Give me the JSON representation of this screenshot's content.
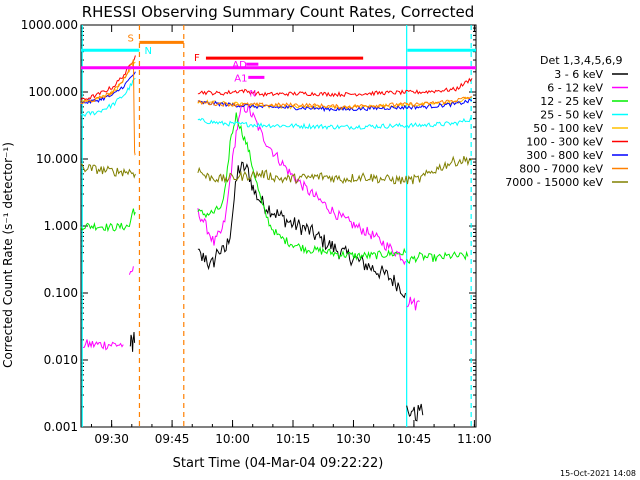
{
  "chart_data": {
    "type": "line",
    "title": "RHESSI Observing Summary Count Rates, Corrected",
    "ylabel": "Corrected Count Rate (s⁻¹ detector⁻¹)",
    "xlabel": "Start Time (04-Mar-04 09:22:22)",
    "x_unit": "minutes after 09:22:22",
    "y_scale": "log",
    "xlim": [
      0,
      98
    ],
    "ylim": [
      0.001,
      1000
    ],
    "x_ticks": [
      {
        "label": "09:30",
        "x": 7.6
      },
      {
        "label": "09:45",
        "x": 22.6
      },
      {
        "label": "10:00",
        "x": 37.6
      },
      {
        "label": "10:15",
        "x": 52.6
      },
      {
        "label": "10:30",
        "x": 67.6
      },
      {
        "label": "10:45",
        "x": 82.6
      },
      {
        "label": "11:00",
        "x": 97.6
      }
    ],
    "y_ticks": [
      {
        "label": "1000.000",
        "v": 1000
      },
      {
        "label": "100.000",
        "v": 100
      },
      {
        "label": "10.000",
        "v": 10
      },
      {
        "label": "1.000",
        "v": 1
      },
      {
        "label": "0.100",
        "v": 0.1
      },
      {
        "label": "0.010",
        "v": 0.01
      },
      {
        "label": "0.001",
        "v": 0.001
      }
    ],
    "legend_title": "Det 1,3,4,5,6,9",
    "legend_position": "right",
    "series": [
      {
        "name": "3 - 6 keV",
        "color": "#000000",
        "noise": 0.12,
        "segments": [
          [
            [
              12.1,
              0.015
            ],
            [
              12.4,
              0.022
            ],
            [
              12.8,
              0.012
            ],
            [
              13.0,
              0.025
            ],
            [
              13.3,
              0.018
            ]
          ],
          [
            [
              29.0,
              0.4
            ],
            [
              30.0,
              0.33
            ],
            [
              31.0,
              0.35
            ],
            [
              32.0,
              0.24
            ],
            [
              33.0,
              0.3
            ],
            [
              34.0,
              0.45
            ],
            [
              35.0,
              0.4
            ],
            [
              36.0,
              0.45
            ],
            [
              37.0,
              0.8
            ],
            [
              38.0,
              2.5
            ],
            [
              39.0,
              7.0
            ],
            [
              40.5,
              7.5
            ],
            [
              41.5,
              6.5
            ],
            [
              43.0,
              3.2
            ],
            [
              45.0,
              2.2
            ],
            [
              48.0,
              1.6
            ],
            [
              52.0,
              1.1
            ],
            [
              56.0,
              0.9
            ],
            [
              60.0,
              0.6
            ],
            [
              64.0,
              0.42
            ],
            [
              68.0,
              0.32
            ],
            [
              72.0,
              0.24
            ],
            [
              76.0,
              0.18
            ],
            [
              79.0,
              0.13
            ],
            [
              80.5,
              0.1
            ]
          ],
          [
            [
              80.8,
              0.0018
            ],
            [
              81.5,
              0.0013
            ],
            [
              82.0,
              0.002
            ],
            [
              83.0,
              0.0014
            ],
            [
              84.0,
              0.0019
            ],
            [
              84.8,
              0.0015
            ]
          ]
        ]
      },
      {
        "name": "6 - 12 keV",
        "color": "#ff00ff",
        "noise": 0.08,
        "segments": [
          [
            [
              0.5,
              0.017
            ],
            [
              10.5,
              0.017
            ]
          ],
          [
            [
              12.0,
              0.16
            ],
            [
              12.6,
              0.2
            ],
            [
              13.0,
              0.25
            ]
          ],
          [
            [
              29.0,
              1.6
            ],
            [
              30.0,
              1.3
            ],
            [
              31.0,
              1.0
            ],
            [
              32.0,
              0.75
            ],
            [
              33.0,
              0.55
            ],
            [
              34.0,
              0.7
            ],
            [
              35.0,
              0.85
            ],
            [
              36.0,
              1.5
            ],
            [
              37.0,
              5.0
            ],
            [
              38.5,
              25.0
            ],
            [
              40.0,
              60.0
            ],
            [
              41.5,
              55.0
            ],
            [
              43.0,
              40.0
            ],
            [
              45.0,
              22.0
            ],
            [
              48.0,
              12.0
            ],
            [
              52.0,
              6.0
            ],
            [
              56.0,
              3.5
            ],
            [
              60.0,
              2.2
            ],
            [
              64.0,
              1.4
            ],
            [
              68.0,
              1.0
            ],
            [
              72.0,
              0.75
            ],
            [
              76.0,
              0.5
            ],
            [
              79.0,
              0.38
            ],
            [
              80.5,
              0.3
            ]
          ],
          [
            [
              80.8,
              0.07
            ],
            [
              82.0,
              0.08
            ],
            [
              83.0,
              0.065
            ],
            [
              84.0,
              0.075
            ]
          ]
        ]
      },
      {
        "name": "12 - 25 keV",
        "color": "#00ee00",
        "noise": 0.06,
        "segments": [
          [
            [
              0.0,
              1.0
            ],
            [
              4.0,
              1.0
            ],
            [
              8.0,
              0.95
            ],
            [
              12.0,
              1.0
            ],
            [
              13.0,
              1.8
            ],
            [
              13.5,
              1.6
            ]
          ],
          [
            [
              29.0,
              1.6
            ],
            [
              31.0,
              1.5
            ],
            [
              33.0,
              1.6
            ],
            [
              35.0,
              2.0
            ],
            [
              36.0,
              4.0
            ],
            [
              37.0,
              18.0
            ],
            [
              38.5,
              45.0
            ],
            [
              40.0,
              25.0
            ],
            [
              41.5,
              14.0
            ],
            [
              43.0,
              6.0
            ],
            [
              45.0,
              2.0
            ],
            [
              47.0,
              1.0
            ],
            [
              49.0,
              0.7
            ],
            [
              52.0,
              0.55
            ],
            [
              56.0,
              0.45
            ],
            [
              60.0,
              0.42
            ],
            [
              64.0,
              0.38
            ],
            [
              68.0,
              0.36
            ],
            [
              72.0,
              0.36
            ],
            [
              76.0,
              0.38
            ],
            [
              80.5,
              0.4
            ]
          ],
          [
            [
              80.8,
              0.3
            ],
            [
              84.0,
              0.35
            ],
            [
              88.0,
              0.33
            ],
            [
              92.0,
              0.36
            ],
            [
              96.0,
              0.35
            ]
          ]
        ]
      },
      {
        "name": "25 - 50 keV",
        "color": "#00ffff",
        "noise": 0.035,
        "segments": [
          [
            [
              0.0,
              45.0
            ],
            [
              4.0,
              50.0
            ],
            [
              8.0,
              65.0
            ],
            [
              11.0,
              95.0
            ],
            [
              13.5,
              160.0
            ]
          ],
          [
            [
              29.0,
              38.0
            ],
            [
              35.0,
              34.0
            ],
            [
              45.0,
              32.0
            ],
            [
              55.0,
              31.0
            ],
            [
              65.0,
              30.0
            ],
            [
              75.0,
              31.0
            ],
            [
              85.0,
              32.0
            ],
            [
              93.0,
              34.0
            ],
            [
              97.0,
              40.0
            ]
          ]
        ]
      },
      {
        "name": "50 - 100 keV",
        "color": "#ffc000",
        "noise": 0.03,
        "segments": [
          [
            [
              0.0,
              70.0
            ],
            [
              4.0,
              80.0
            ],
            [
              8.0,
              100.0
            ],
            [
              11.0,
              160.0
            ],
            [
              13.5,
              280.0
            ]
          ],
          [
            [
              29.0,
              72.0
            ],
            [
              35.0,
              68.0
            ],
            [
              45.0,
              62.0
            ],
            [
              55.0,
              60.0
            ],
            [
              65.0,
              58.0
            ],
            [
              75.0,
              62.0
            ],
            [
              85.0,
              65.0
            ],
            [
              93.0,
              70.0
            ],
            [
              97.0,
              85.0
            ]
          ]
        ]
      },
      {
        "name": "100 - 300 keV",
        "color": "#ff0000",
        "noise": 0.03,
        "segments": [
          [
            [
              0.0,
              75.0
            ],
            [
              4.0,
              90.0
            ],
            [
              8.0,
              120.0
            ],
            [
              11.0,
              190.0
            ],
            [
              13.5,
              350.0
            ]
          ],
          [
            [
              29.0,
              100.0
            ],
            [
              35.0,
              95.0
            ],
            [
              40.0,
              105.0
            ],
            [
              45.0,
              92.0
            ],
            [
              55.0,
              95.0
            ],
            [
              65.0,
              92.0
            ],
            [
              75.0,
              97.0
            ],
            [
              85.0,
              100.0
            ],
            [
              93.0,
              110.0
            ],
            [
              97.0,
              160.0
            ]
          ]
        ]
      },
      {
        "name": "300 - 800 keV",
        "color": "#0000ff",
        "noise": 0.03,
        "segments": [
          [
            [
              0.0,
              68.0
            ],
            [
              4.0,
              75.0
            ],
            [
              8.0,
              90.0
            ],
            [
              11.0,
              130.0
            ],
            [
              13.5,
              200.0
            ]
          ],
          [
            [
              29.0,
              70.0
            ],
            [
              35.0,
              66.0
            ],
            [
              45.0,
              60.0
            ],
            [
              55.0,
              58.0
            ],
            [
              65.0,
              55.0
            ],
            [
              75.0,
              58.0
            ],
            [
              85.0,
              60.0
            ],
            [
              93.0,
              66.0
            ],
            [
              97.0,
              75.0
            ]
          ]
        ]
      },
      {
        "name": "800 - 7000 keV",
        "color": "#ff8000",
        "noise": 0.03,
        "segments": [
          [
            [
              0.0,
              68.0
            ],
            [
              4.0,
              78.0
            ],
            [
              8.0,
              100.0
            ],
            [
              11.0,
              170.0
            ],
            [
              13.0,
              300.0
            ],
            [
              13.3,
              12.0
            ],
            [
              13.5,
              12.0
            ]
          ],
          [
            [
              29.0,
              70.0
            ],
            [
              35.0,
              66.0
            ],
            [
              45.0,
              64.0
            ],
            [
              55.0,
              64.0
            ],
            [
              65.0,
              60.0
            ],
            [
              75.0,
              64.0
            ],
            [
              85.0,
              66.0
            ],
            [
              93.0,
              75.0
            ],
            [
              97.0,
              85.0
            ]
          ]
        ]
      },
      {
        "name": "7000 - 15000 keV",
        "color": "#808000",
        "noise": 0.07,
        "segments": [
          [
            [
              0.0,
              7.5
            ],
            [
              4.0,
              7.0
            ],
            [
              8.0,
              6.5
            ],
            [
              12.0,
              6.5
            ],
            [
              13.5,
              6.0
            ]
          ],
          [
            [
              29.0,
              7.0
            ],
            [
              31.0,
              5.5
            ],
            [
              35.0,
              5.0
            ],
            [
              40.0,
              5.5
            ],
            [
              45.0,
              6.0
            ],
            [
              50.0,
              5.0
            ],
            [
              55.0,
              5.2
            ],
            [
              60.0,
              5.5
            ],
            [
              65.0,
              5.0
            ],
            [
              70.0,
              5.5
            ],
            [
              75.0,
              5.0
            ],
            [
              80.0,
              4.8
            ],
            [
              84.0,
              5.0
            ],
            [
              88.0,
              7.0
            ],
            [
              92.0,
              9.0
            ],
            [
              97.0,
              10.0
            ]
          ]
        ]
      }
    ],
    "state_bars": [
      {
        "label": "S",
        "color": "#ff8000",
        "x0": 14.5,
        "x1": 25.5,
        "v": 550
      },
      {
        "label": "N",
        "color": "#00ffff",
        "x0": 0.0,
        "x1": 14.5,
        "v": 420
      },
      {
        "label": "N",
        "color": "#00ffff",
        "x0": 81.0,
        "x1": 98.0,
        "v": 420
      },
      {
        "label": "F",
        "color": "#ff0000",
        "x0": 31.0,
        "x1": 70.0,
        "v": 320
      },
      {
        "label": "",
        "color": "#ff00ff",
        "x0": 0.0,
        "x1": 98.0,
        "v": 230
      },
      {
        "label": "AD",
        "color": "#ff00ff",
        "x0": 41.0,
        "x1": 44.0,
        "v": 260
      },
      {
        "label": "A1",
        "color": "#ff00ff",
        "x0": 41.5,
        "x1": 45.5,
        "v": 165
      }
    ],
    "markers": [
      {
        "label": "N",
        "x": 41.8,
        "v": 85
      }
    ],
    "vlines": [
      {
        "x": 0.3,
        "color": "#00ffff",
        "style": "solid"
      },
      {
        "x": 14.5,
        "color": "#ff8000",
        "style": "dashed"
      },
      {
        "x": 25.5,
        "color": "#ff8000",
        "style": "dashed"
      },
      {
        "x": 80.8,
        "color": "#00ffff",
        "style": "solid"
      },
      {
        "x": 96.8,
        "color": "#00ffff",
        "style": "dashed"
      }
    ],
    "footer": "15-Oct-2021 14:08"
  }
}
